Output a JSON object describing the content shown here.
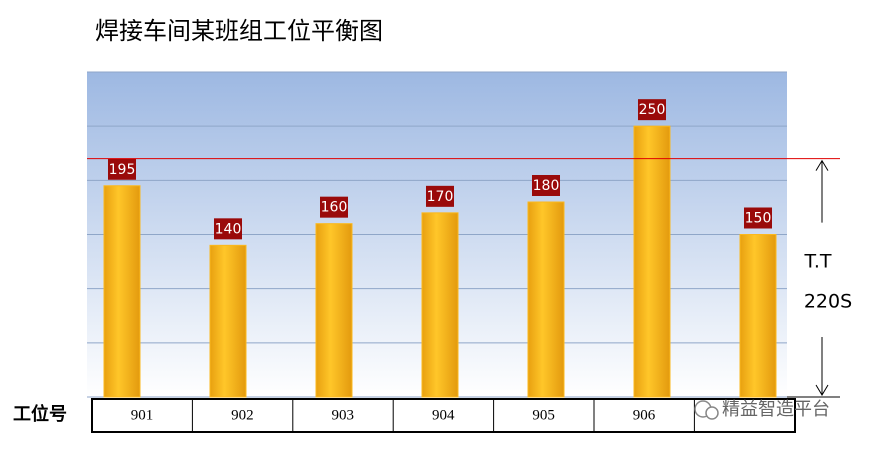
{
  "chart_data": {
    "type": "bar",
    "title": "焊接车间某班组工位平衡图",
    "categories": [
      "901",
      "902",
      "903",
      "904",
      "905",
      "906",
      null
    ],
    "values": [
      195,
      140,
      160,
      170,
      180,
      250,
      150
    ],
    "color": "#fbb81c",
    "ylim": [
      0,
      300
    ],
    "yticks": [
      0,
      50,
      100,
      150,
      200,
      250,
      300
    ],
    "grid": true,
    "x_label": "工位号",
    "takt": {
      "value": 220,
      "label": "220S",
      "name": "T.T",
      "color": "#e00000"
    },
    "watermark": "精益智造平台"
  }
}
